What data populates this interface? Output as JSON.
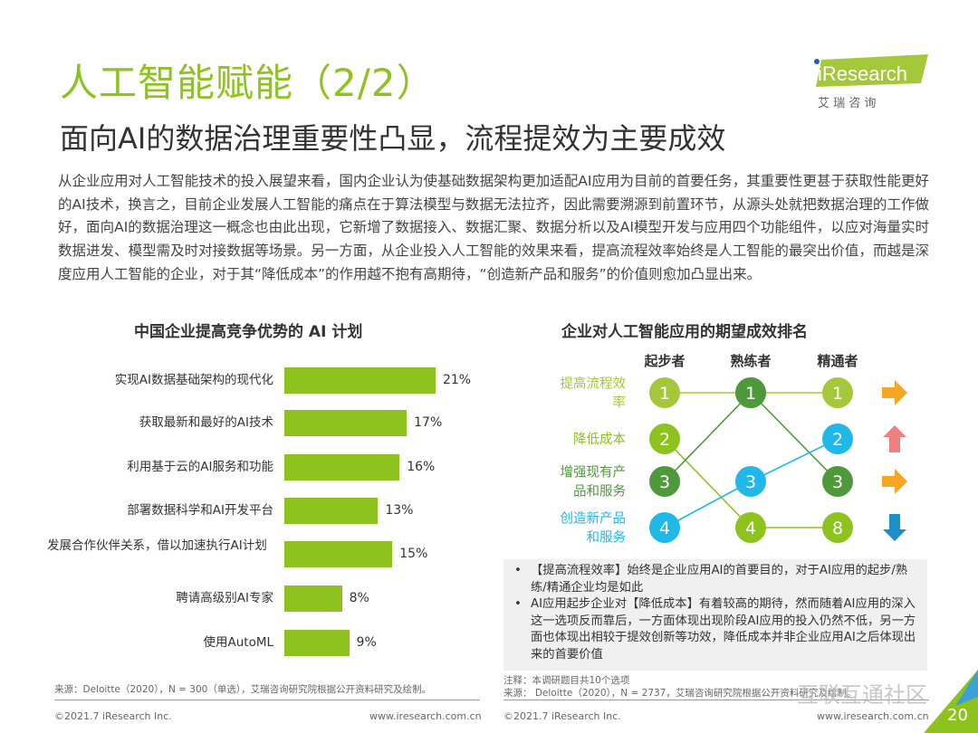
{
  "header": {
    "title": "人工智能赋能（2/2）",
    "subtitle": "面向AI的数据治理重要性凸显，流程提效为主要成效",
    "logo_text": "iResearch",
    "logo_sub": "艾 瑞 咨 询"
  },
  "body_text": "从企业应用对人工智能技术的投入展望来看，国内企业认为使基础数据架构更加适配AI应用为目前的首要任务，其重要性更甚于获取性能更好的AI技术，换言之，目前企业发展人工智能的痛点在于算法模型与数据无法拉齐，因此需要溯源到前置环节，从源头处就把数据治理的工作做好，面向AI的数据治理这一概念也由此出现，它新增了数据接入、数据汇聚、数据分析以及AI模型开发与应用四个功能组件，以应对海量实时数据进发、模型需及时对接数据等场景。另一方面，从企业投入人工智能的效果来看，提高流程效率始终是人工智能的最突出价值，而越是深度应用人工智能的企业，对于其“降低成本”的作用越不抱有高期待，“创造新产品和服务”的价值则愈加凸显出来。",
  "chart_data": [
    {
      "type": "bar",
      "title": "中国企业提高竞争优势的 AI 计划",
      "orientation": "horizontal",
      "categories": [
        "实现AI数据基础架构的现代化",
        "获取最新和最好的AI技术",
        "利用基于云的AI服务和功能",
        "部署数据科学和AI开发平台",
        "发展合作伙伴关系，借以加速执行AI计划",
        "聘请高级别AI专家",
        "使用AutoML"
      ],
      "values": [
        21,
        17,
        16,
        13,
        15,
        8,
        9
      ],
      "value_labels": [
        "21%",
        "17%",
        "16%",
        "13%",
        "15%",
        "8%",
        "9%"
      ],
      "color": "#8dc21f",
      "source": "来源：Deloitte（2020），N = 300（单选），艾瑞咨询研究院根据公开资料研究及绘制。"
    },
    {
      "type": "table",
      "title": "企业对人工智能应用的期望成效排名",
      "columns": [
        "起步者",
        "熟练者",
        "精通者"
      ],
      "rows": [
        {
          "label": "提高流程效率",
          "ranks": [
            "1",
            "1",
            "1"
          ],
          "color": "#a5c83a",
          "trend": "flat",
          "trend_color": "#f5a623"
        },
        {
          "label": "降低成本",
          "ranks": [
            "2",
            "4",
            "8"
          ],
          "color": "#8dc21f",
          "trend": "up",
          "trend_color": "#f08080"
        },
        {
          "label": "增强现有产品和服务",
          "ranks": [
            "3",
            "1",
            "3"
          ],
          "color": "#4e9a3a",
          "trend": "flat",
          "trend_color": "#f5a623"
        },
        {
          "label": "创造新产品和服务",
          "ranks": [
            "4",
            "3",
            "2"
          ],
          "color": "#1fb8e8",
          "trend": "down",
          "trend_color": "#1a8fc9"
        }
      ],
      "notes": [
        "【提高流程效率】始终是企业应用AI的首要目的，对于AI应用的起步/熟练/精通企业均是如此",
        "AI应用起步企业对【降低成本】有着较高的期待，然而随着AI应用的深入这一选项反而靠后，一方面体现出现阶段AI应用的投入仍然不低，另一方面也体现出相较于提效创新等功效，降低成本并非企业应用AI之后体现出来的首要价值"
      ],
      "footnote": "注释：本调研题目共10个选项",
      "source": "来源： Deloitte（2020），N = 2737，艾瑞咨询研究院根据公开资料研究及绘制。"
    }
  ],
  "footer": {
    "copyright": "©2021.7 iResearch Inc.",
    "url": "www.iresearch.com.cn",
    "copyright2": "©2021.7 iResearch Inc.",
    "url2": "www.iresearch.com.cn",
    "page": "20",
    "watermark": "互联互通社区"
  }
}
